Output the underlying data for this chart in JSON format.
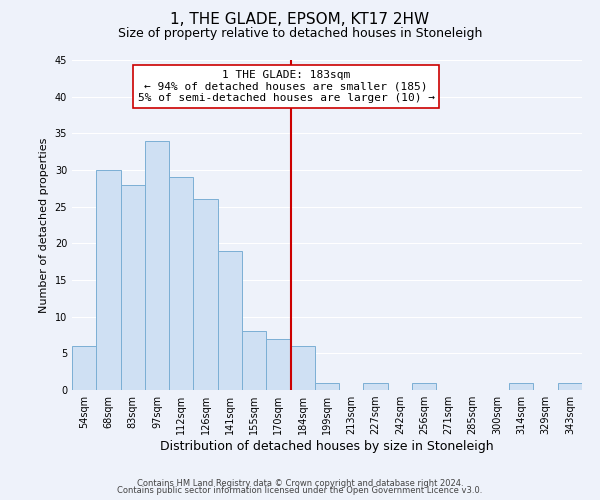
{
  "title": "1, THE GLADE, EPSOM, KT17 2HW",
  "subtitle": "Size of property relative to detached houses in Stoneleigh",
  "xlabel": "Distribution of detached houses by size in Stoneleigh",
  "ylabel": "Number of detached properties",
  "bar_labels": [
    "54sqm",
    "68sqm",
    "83sqm",
    "97sqm",
    "112sqm",
    "126sqm",
    "141sqm",
    "155sqm",
    "170sqm",
    "184sqm",
    "199sqm",
    "213sqm",
    "227sqm",
    "242sqm",
    "256sqm",
    "271sqm",
    "285sqm",
    "300sqm",
    "314sqm",
    "329sqm",
    "343sqm"
  ],
  "bar_values": [
    6,
    30,
    28,
    34,
    29,
    26,
    19,
    8,
    7,
    6,
    1,
    0,
    1,
    0,
    1,
    0,
    0,
    0,
    1,
    0,
    1
  ],
  "bar_color": "#cfe0f3",
  "bar_edge_color": "#7bafd4",
  "vline_color": "#cc0000",
  "vline_x": 9.0,
  "ylim": [
    0,
    45
  ],
  "yticks": [
    0,
    5,
    10,
    15,
    20,
    25,
    30,
    35,
    40,
    45
  ],
  "annotation_title": "1 THE GLADE: 183sqm",
  "annotation_line1": "← 94% of detached houses are smaller (185)",
  "annotation_line2": "5% of semi-detached houses are larger (10) →",
  "footer_line1": "Contains HM Land Registry data © Crown copyright and database right 2024.",
  "footer_line2": "Contains public sector information licensed under the Open Government Licence v3.0.",
  "bg_color": "#eef2fa",
  "grid_color": "#ffffff",
  "title_fontsize": 11,
  "subtitle_fontsize": 9,
  "xlabel_fontsize": 9,
  "ylabel_fontsize": 8,
  "tick_fontsize": 7,
  "annotation_fontsize": 8,
  "footer_fontsize": 6
}
